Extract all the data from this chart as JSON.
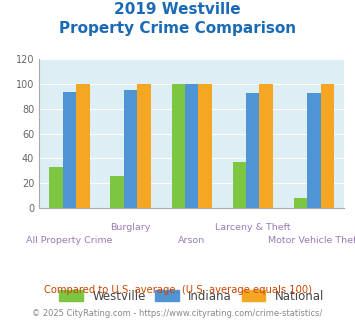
{
  "title_line1": "2019 Westville",
  "title_line2": "Property Crime Comparison",
  "categories": [
    "All Property Crime",
    "Burglary",
    "Arson",
    "Larceny & Theft",
    "Motor Vehicle Theft"
  ],
  "westville": [
    33,
    26,
    100,
    37,
    8
  ],
  "indiana": [
    94,
    95,
    100,
    93,
    93
  ],
  "national": [
    100,
    100,
    100,
    100,
    100
  ],
  "color_westville": "#7dc642",
  "color_indiana": "#4f94d4",
  "color_national": "#f5a623",
  "title_color": "#1a6ab5",
  "xlabel_color": "#9b7bb5",
  "ylabel_color": "#666666",
  "bg_color": "#ddeef5",
  "ylim": [
    0,
    120
  ],
  "yticks": [
    0,
    20,
    40,
    60,
    80,
    100,
    120
  ],
  "legend_labels": [
    "Westville",
    "Indiana",
    "National"
  ],
  "footnote1": "Compared to U.S. average. (U.S. average equals 100)",
  "footnote2": "© 2025 CityRating.com - https://www.cityrating.com/crime-statistics/",
  "footnote1_color": "#cc4400",
  "footnote2_color": "#888888",
  "top_cats": [
    "Burglary",
    "Larceny & Theft"
  ],
  "bottom_cats": [
    "All Property Crime",
    "Arson",
    "Motor Vehicle Theft"
  ]
}
